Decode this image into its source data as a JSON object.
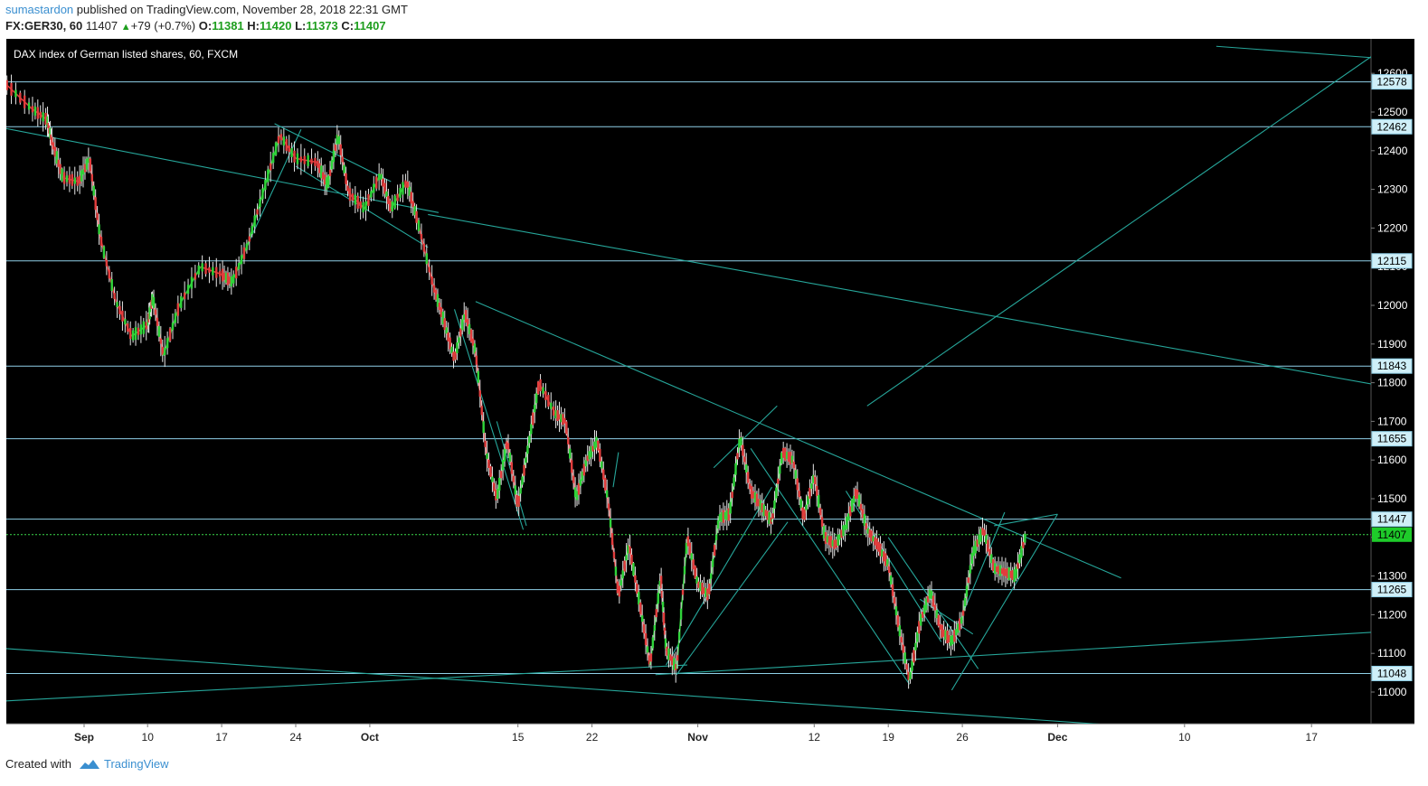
{
  "header": {
    "user": "sumastardon",
    "published_text": "published on TradingView.com, November 28, 2018 22:31 GMT",
    "symbol": "FX:GER30, 60",
    "last": "11407",
    "change": "+79 (+0.7%)",
    "open_label": "O:",
    "open": "11381",
    "high_label": "H:",
    "high": "11420",
    "low_label": "L:",
    "low": "11373",
    "close_label": "C:",
    "close": "11407"
  },
  "chart_data": {
    "type": "line",
    "title": "DAX index of German listed shares, 60, FXCM",
    "ylim": [
      10920,
      12640
    ],
    "y_ticks": [
      11000,
      11100,
      11200,
      11300,
      11400,
      11500,
      11600,
      11700,
      11800,
      11900,
      12000,
      12100,
      12200,
      12300,
      12400,
      12500,
      12600
    ],
    "x_ticks": [
      {
        "label": "Sep",
        "day": 4
      },
      {
        "label": "10",
        "day": 10
      },
      {
        "label": "17",
        "day": 17
      },
      {
        "label": "24",
        "day": 24
      },
      {
        "label": "Oct",
        "day": 31
      },
      {
        "label": "15",
        "day": 45
      },
      {
        "label": "22",
        "day": 52
      },
      {
        "label": "Nov",
        "day": 62
      },
      {
        "label": "12",
        "day": 73
      },
      {
        "label": "19",
        "day": 80
      },
      {
        "label": "26",
        "day": 87
      },
      {
        "label": "Dec",
        "day": 96
      },
      {
        "label": "10",
        "day": 108
      },
      {
        "label": "17",
        "day": 120
      }
    ],
    "horizontal_levels": [
      {
        "label": "12578",
        "value": 12578
      },
      {
        "label": "12462",
        "value": 12462
      },
      {
        "label": "12115",
        "value": 12115
      },
      {
        "label": "11843",
        "value": 11843
      },
      {
        "label": "11655",
        "value": 11655
      },
      {
        "label": "11447",
        "value": 11447
      },
      {
        "label": "11265",
        "value": 11265
      },
      {
        "label": "11048",
        "value": 11048
      }
    ],
    "current_price": {
      "label": "11407",
      "value": 11407
    },
    "price_path": [
      {
        "day": -3.5,
        "price": 12575
      },
      {
        "day": -1,
        "price": 12510
      },
      {
        "day": 0.5,
        "price": 12480
      },
      {
        "day": 1,
        "price": 12420
      },
      {
        "day": 2,
        "price": 12330
      },
      {
        "day": 3.5,
        "price": 12320
      },
      {
        "day": 4.5,
        "price": 12380
      },
      {
        "day": 5.5,
        "price": 12180
      },
      {
        "day": 7,
        "price": 12010
      },
      {
        "day": 8.5,
        "price": 11920
      },
      {
        "day": 10,
        "price": 11950
      },
      {
        "day": 10.5,
        "price": 12020
      },
      {
        "day": 11.5,
        "price": 11870
      },
      {
        "day": 13,
        "price": 12000
      },
      {
        "day": 15,
        "price": 12100
      },
      {
        "day": 17,
        "price": 12080
      },
      {
        "day": 18,
        "price": 12060
      },
      {
        "day": 19.5,
        "price": 12160
      },
      {
        "day": 21,
        "price": 12300
      },
      {
        "day": 22.5,
        "price": 12440
      },
      {
        "day": 24,
        "price": 12380
      },
      {
        "day": 26,
        "price": 12370
      },
      {
        "day": 27,
        "price": 12310
      },
      {
        "day": 28,
        "price": 12440
      },
      {
        "day": 29,
        "price": 12290
      },
      {
        "day": 30.5,
        "price": 12250
      },
      {
        "day": 32,
        "price": 12340
      },
      {
        "day": 33,
        "price": 12250
      },
      {
        "day": 34.5,
        "price": 12320
      },
      {
        "day": 35.5,
        "price": 12220
      },
      {
        "day": 37,
        "price": 12050
      },
      {
        "day": 38,
        "price": 11960
      },
      {
        "day": 39,
        "price": 11860
      },
      {
        "day": 40,
        "price": 11980
      },
      {
        "day": 41,
        "price": 11880
      },
      {
        "day": 42,
        "price": 11620
      },
      {
        "day": 43,
        "price": 11500
      },
      {
        "day": 44,
        "price": 11650
      },
      {
        "day": 45,
        "price": 11480
      },
      {
        "day": 46,
        "price": 11640
      },
      {
        "day": 47,
        "price": 11800
      },
      {
        "day": 48.5,
        "price": 11720
      },
      {
        "day": 49.5,
        "price": 11700
      },
      {
        "day": 50.5,
        "price": 11500
      },
      {
        "day": 51.5,
        "price": 11600
      },
      {
        "day": 52.5,
        "price": 11650
      },
      {
        "day": 53.5,
        "price": 11500
      },
      {
        "day": 54.5,
        "price": 11250
      },
      {
        "day": 55.5,
        "price": 11380
      },
      {
        "day": 56.5,
        "price": 11230
      },
      {
        "day": 57.5,
        "price": 11070
      },
      {
        "day": 58.5,
        "price": 11300
      },
      {
        "day": 59,
        "price": 11110
      },
      {
        "day": 60,
        "price": 11060
      },
      {
        "day": 61,
        "price": 11400
      },
      {
        "day": 62,
        "price": 11280
      },
      {
        "day": 63,
        "price": 11250
      },
      {
        "day": 64,
        "price": 11450
      },
      {
        "day": 65,
        "price": 11460
      },
      {
        "day": 66,
        "price": 11660
      },
      {
        "day": 67,
        "price": 11520
      },
      {
        "day": 68,
        "price": 11480
      },
      {
        "day": 69,
        "price": 11440
      },
      {
        "day": 70,
        "price": 11620
      },
      {
        "day": 71,
        "price": 11600
      },
      {
        "day": 72,
        "price": 11450
      },
      {
        "day": 73,
        "price": 11560
      },
      {
        "day": 74,
        "price": 11400
      },
      {
        "day": 75,
        "price": 11380
      },
      {
        "day": 76,
        "price": 11430
      },
      {
        "day": 77,
        "price": 11520
      },
      {
        "day": 78,
        "price": 11420
      },
      {
        "day": 79,
        "price": 11380
      },
      {
        "day": 80,
        "price": 11330
      },
      {
        "day": 81,
        "price": 11170
      },
      {
        "day": 82,
        "price": 11030
      },
      {
        "day": 83,
        "price": 11180
      },
      {
        "day": 84,
        "price": 11260
      },
      {
        "day": 85,
        "price": 11160
      },
      {
        "day": 86,
        "price": 11130
      },
      {
        "day": 87,
        "price": 11190
      },
      {
        "day": 88,
        "price": 11360
      },
      {
        "day": 89,
        "price": 11420
      },
      {
        "day": 90,
        "price": 11320
      },
      {
        "day": 91,
        "price": 11310
      },
      {
        "day": 92,
        "price": 11300
      },
      {
        "day": 93,
        "price": 11407
      }
    ],
    "trend_lines": [
      {
        "start": {
          "day": -4.8,
          "price": 12465
        },
        "end": {
          "day": 37.5,
          "price": 12240
        }
      },
      {
        "start": {
          "day": 36.5,
          "price": 12235
        },
        "end": {
          "day": 126,
          "price": 11795
        }
      },
      {
        "start": {
          "day": 78,
          "price": 11740
        },
        "end": {
          "day": 126,
          "price": 12650
        }
      },
      {
        "start": {
          "day": 22,
          "price": 12470
        },
        "end": {
          "day": 33,
          "price": 12320
        }
      },
      {
        "start": {
          "day": 19,
          "price": 12130
        },
        "end": {
          "day": 24.5,
          "price": 12455
        }
      },
      {
        "start": {
          "day": 24,
          "price": 12360
        },
        "end": {
          "day": 36.5,
          "price": 12150
        }
      },
      {
        "start": {
          "day": 41,
          "price": 12010
        },
        "end": {
          "day": 102,
          "price": 11295
        }
      },
      {
        "start": {
          "day": 39,
          "price": 11990
        },
        "end": {
          "day": 45.5,
          "price": 11420
        }
      },
      {
        "start": {
          "day": 54.5,
          "price": 11620
        },
        "end": {
          "day": 54,
          "price": 11530
        }
      },
      {
        "start": {
          "day": 59,
          "price": 11070
        },
        "end": {
          "day": 69,
          "price": 11530
        }
      },
      {
        "start": {
          "day": 60,
          "price": 11045
        },
        "end": {
          "day": 70.5,
          "price": 11440
        }
      },
      {
        "start": {
          "day": 63.5,
          "price": 11580
        },
        "end": {
          "day": 69.5,
          "price": 11740
        }
      },
      {
        "start": {
          "day": 67,
          "price": 11630
        },
        "end": {
          "day": 82,
          "price": 11020
        }
      },
      {
        "start": {
          "day": 76,
          "price": 11520
        },
        "end": {
          "day": 85,
          "price": 11130
        }
      },
      {
        "start": {
          "day": 80,
          "price": 11400
        },
        "end": {
          "day": 88.5,
          "price": 11060
        }
      },
      {
        "start": {
          "day": 83,
          "price": 11240
        },
        "end": {
          "day": 88,
          "price": 11150
        }
      },
      {
        "start": {
          "day": 87,
          "price": 11200
        },
        "end": {
          "day": 91,
          "price": 11465
        }
      },
      {
        "start": {
          "day": 86,
          "price": 11005
        },
        "end": {
          "day": 96,
          "price": 11460
        }
      },
      {
        "start": {
          "day": 90,
          "price": 11430
        },
        "end": {
          "day": 96,
          "price": 11460
        }
      },
      {
        "start": {
          "day": 58,
          "price": 11045
        },
        "end": {
          "day": 126,
          "price": 11155
        }
      },
      {
        "start": {
          "day": -4.8,
          "price": 11115
        },
        "end": {
          "day": 101,
          "price": 10915
        }
      },
      {
        "start": {
          "day": -4.8,
          "price": 10975
        },
        "end": {
          "day": 61,
          "price": 11070
        }
      },
      {
        "start": {
          "day": 111,
          "price": 12670
        },
        "end": {
          "day": 126,
          "price": 12640
        }
      },
      {
        "start": {
          "day": 43,
          "price": 11700
        },
        "end": {
          "day": 45.8,
          "price": 11430
        }
      }
    ]
  },
  "footer": {
    "created_with": "Created with",
    "brand": "TradingView"
  }
}
